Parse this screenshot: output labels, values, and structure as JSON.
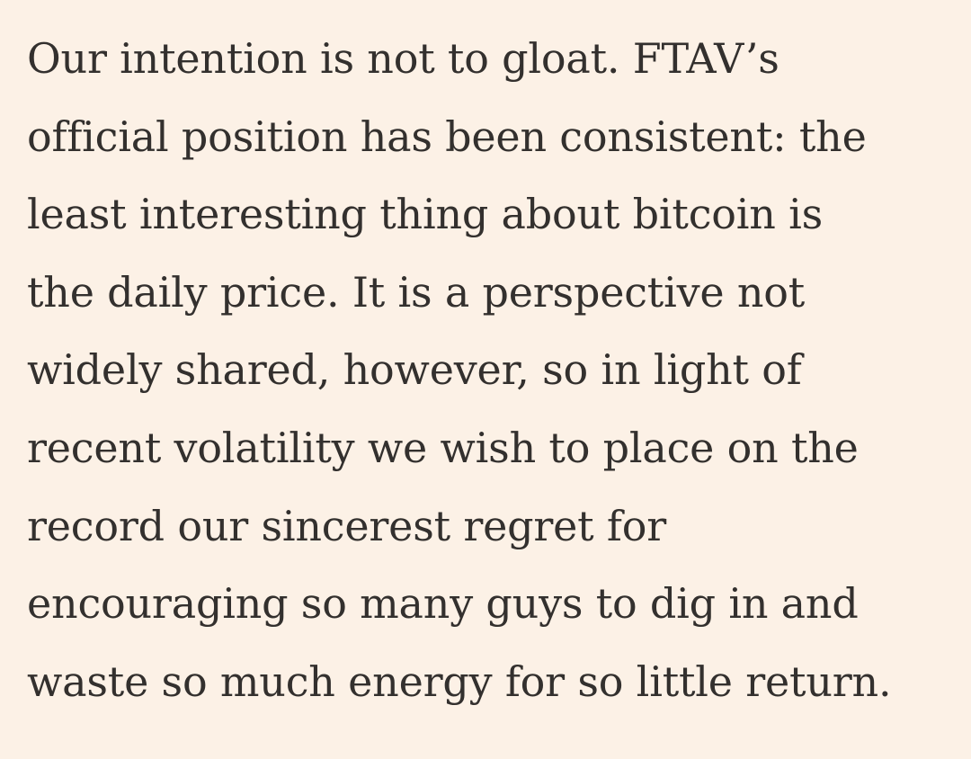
{
  "article": {
    "background": "#fcf1e6",
    "text_color": "#33302e",
    "lines": [
      "Our intention is not to gloat. FTAV’s",
      "official position has been consistent: the",
      "least interesting thing about bitcoin is",
      "the daily price. It is a perspective not",
      "widely shared, however, so in light of",
      "recent volatility we wish to place on the",
      "record our sincerest regret for",
      "encouraging so many guys to dig in and",
      "waste so much energy for so little return."
    ]
  }
}
